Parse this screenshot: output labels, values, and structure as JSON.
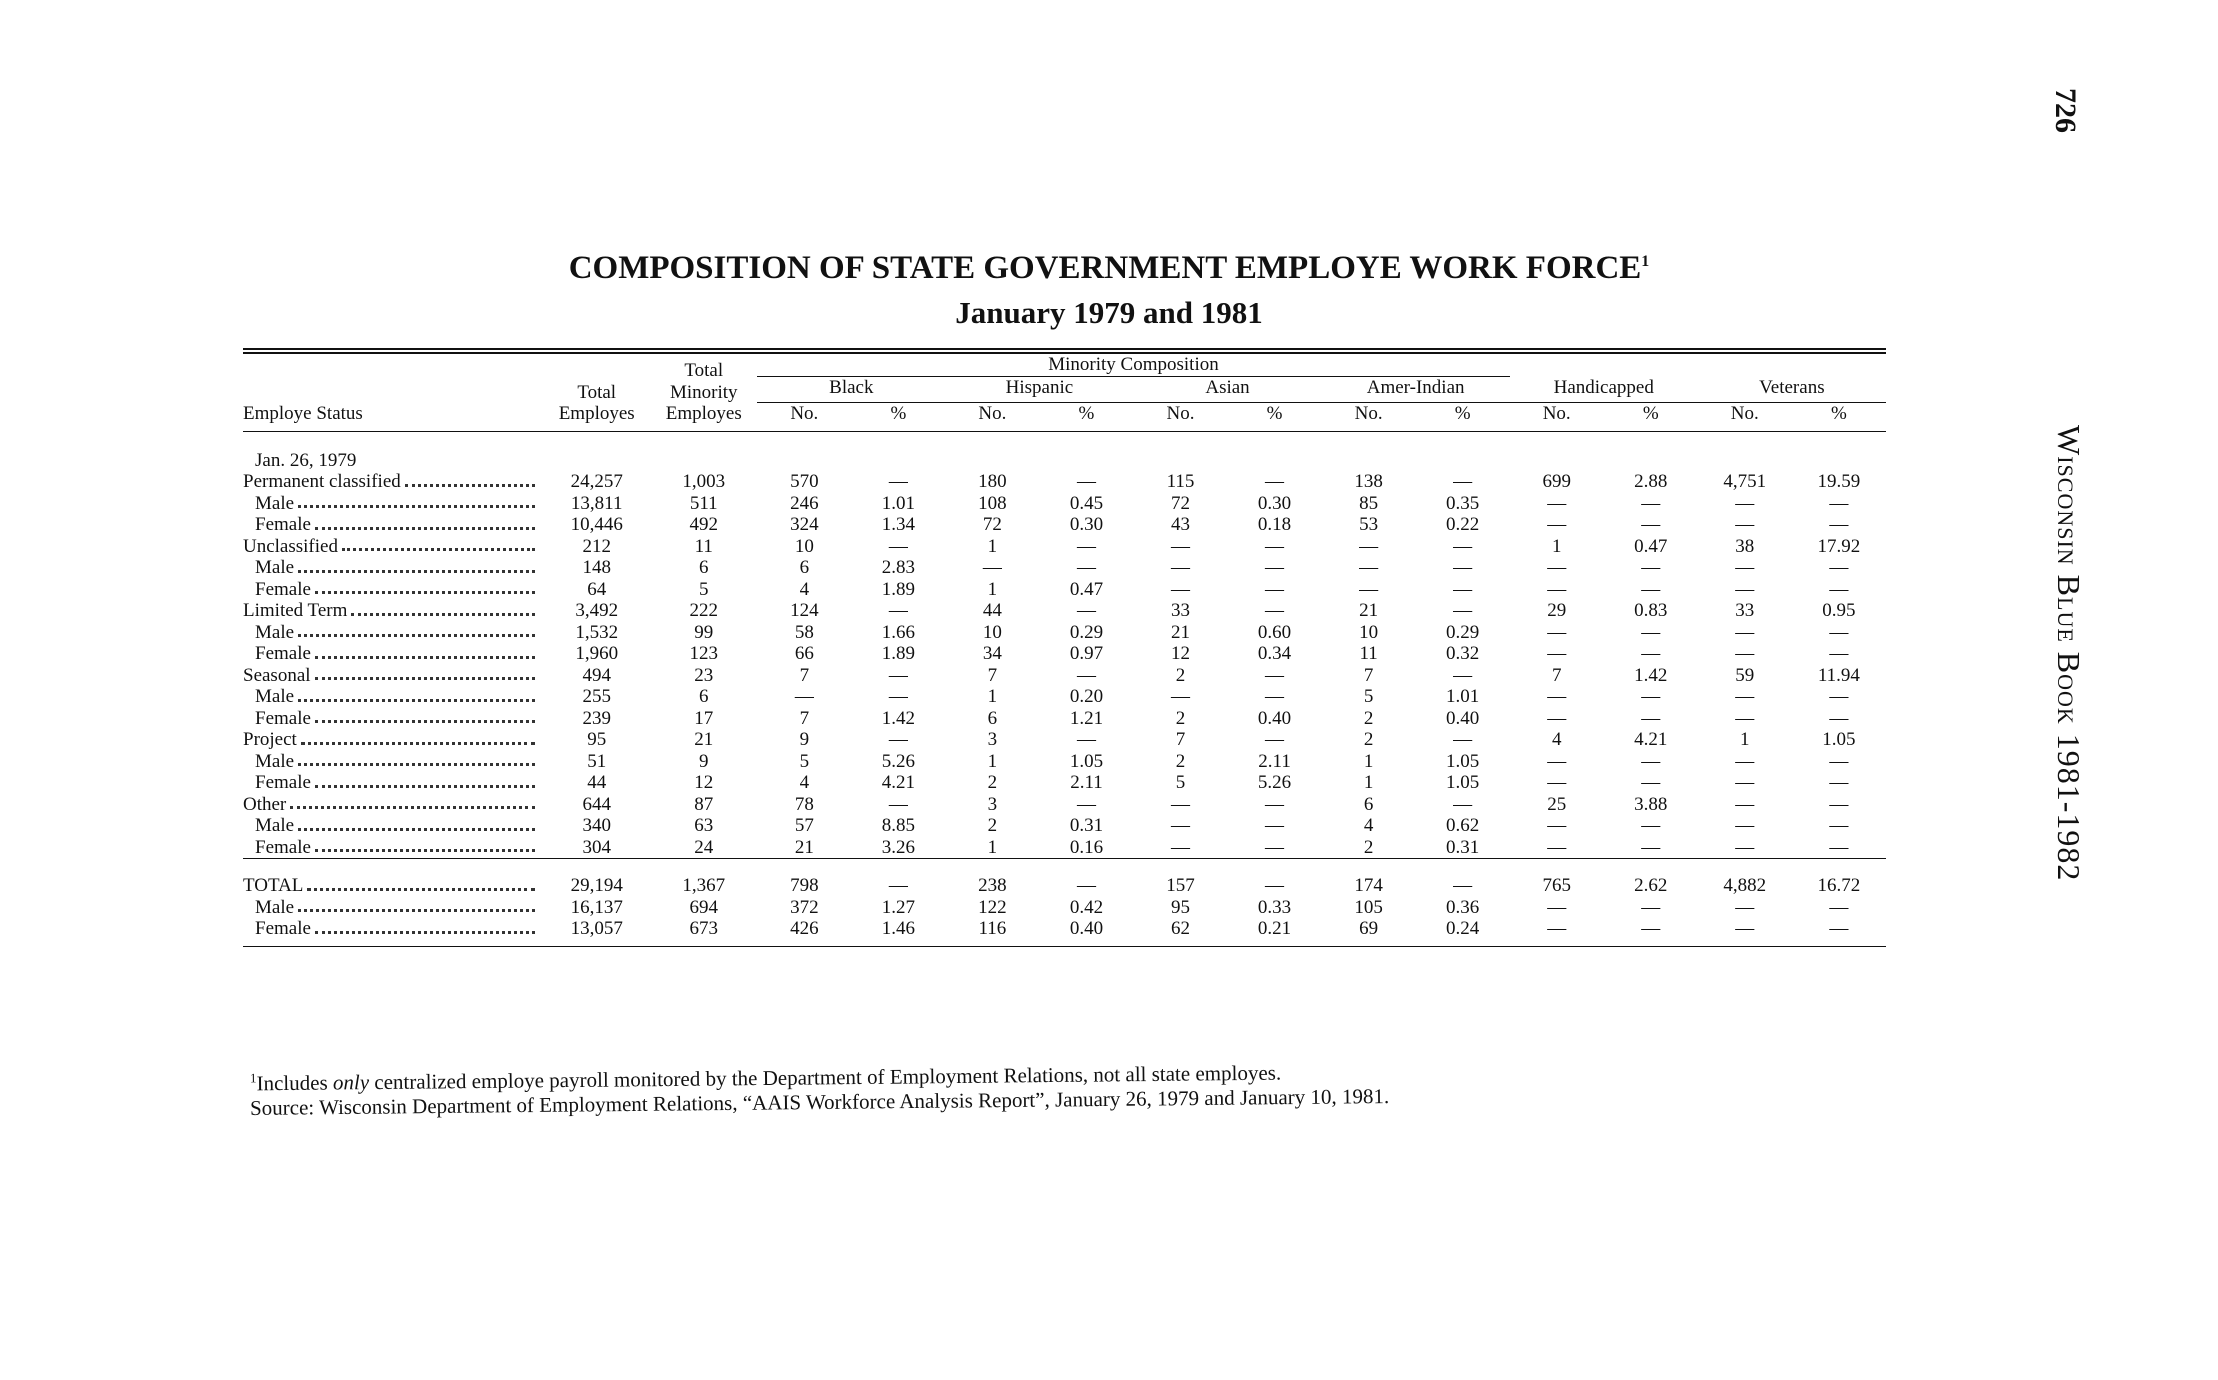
{
  "page_number": "726",
  "running_head": "Wisconsin Blue Book 1981-1982",
  "title": "COMPOSITION OF STATE GOVERNMENT EMPLOYE WORK FORCE",
  "title_note": "1",
  "subtitle": "January 1979 and 1981",
  "table": {
    "status_header": "Employe Status",
    "total_header": "Total Employes",
    "minority_header": "Total Minority Employes",
    "minority_group": "Minority Composition",
    "groups": [
      "Black",
      "Hispanic",
      "Asian",
      "Amer-Indian",
      "Handicapped",
      "Veterans"
    ],
    "subheaders": [
      "No.",
      "%"
    ],
    "section": "Jan. 26, 1979",
    "rows": [
      {
        "label": "Permanent classified",
        "cells": [
          "24,257",
          "1,003",
          "570",
          "—",
          "180",
          "—",
          "115",
          "—",
          "138",
          "—",
          "699",
          "2.88",
          "4,751",
          "19.59"
        ],
        "sub": [
          {
            "label": "Male",
            "cells": [
              "13,811",
              "511",
              "246",
              "1.01",
              "108",
              "0.45",
              "72",
              "0.30",
              "85",
              "0.35",
              "—",
              "—",
              "—",
              "—"
            ]
          },
          {
            "label": "Female",
            "cells": [
              "10,446",
              "492",
              "324",
              "1.34",
              "72",
              "0.30",
              "43",
              "0.18",
              "53",
              "0.22",
              "—",
              "—",
              "—",
              "—"
            ]
          }
        ]
      },
      {
        "label": "Unclassified",
        "cells": [
          "212",
          "11",
          "10",
          "—",
          "1",
          "—",
          "—",
          "—",
          "—",
          "—",
          "1",
          "0.47",
          "38",
          "17.92"
        ],
        "sub": [
          {
            "label": "Male",
            "cells": [
              "148",
              "6",
              "6",
              "2.83",
              "—",
              "—",
              "—",
              "—",
              "—",
              "—",
              "—",
              "—",
              "—",
              "—"
            ]
          },
          {
            "label": "Female",
            "cells": [
              "64",
              "5",
              "4",
              "1.89",
              "1",
              "0.47",
              "—",
              "—",
              "—",
              "—",
              "—",
              "—",
              "—",
              "—"
            ]
          }
        ]
      },
      {
        "label": "Limited Term",
        "cells": [
          "3,492",
          "222",
          "124",
          "—",
          "44",
          "—",
          "33",
          "—",
          "21",
          "—",
          "29",
          "0.83",
          "33",
          "0.95"
        ],
        "sub": [
          {
            "label": "Male",
            "cells": [
              "1,532",
              "99",
              "58",
              "1.66",
              "10",
              "0.29",
              "21",
              "0.60",
              "10",
              "0.29",
              "—",
              "—",
              "—",
              "—"
            ]
          },
          {
            "label": "Female",
            "cells": [
              "1,960",
              "123",
              "66",
              "1.89",
              "34",
              "0.97",
              "12",
              "0.34",
              "11",
              "0.32",
              "—",
              "—",
              "—",
              "—"
            ]
          }
        ]
      },
      {
        "label": "Seasonal",
        "cells": [
          "494",
          "23",
          "7",
          "—",
          "7",
          "—",
          "2",
          "—",
          "7",
          "—",
          "7",
          "1.42",
          "59",
          "11.94"
        ],
        "sub": [
          {
            "label": "Male",
            "cells": [
              "255",
              "6",
              "—",
              "—",
              "1",
              "0.20",
              "—",
              "—",
              "5",
              "1.01",
              "—",
              "—",
              "—",
              "—"
            ]
          },
          {
            "label": "Female",
            "cells": [
              "239",
              "17",
              "7",
              "1.42",
              "6",
              "1.21",
              "2",
              "0.40",
              "2",
              "0.40",
              "—",
              "—",
              "—",
              "—"
            ]
          }
        ]
      },
      {
        "label": "Project",
        "cells": [
          "95",
          "21",
          "9",
          "—",
          "3",
          "—",
          "7",
          "—",
          "2",
          "—",
          "4",
          "4.21",
          "1",
          "1.05"
        ],
        "sub": [
          {
            "label": "Male",
            "cells": [
              "51",
              "9",
              "5",
              "5.26",
              "1",
              "1.05",
              "2",
              "2.11",
              "1",
              "1.05",
              "—",
              "—",
              "—",
              "—"
            ]
          },
          {
            "label": "Female",
            "cells": [
              "44",
              "12",
              "4",
              "4.21",
              "2",
              "2.11",
              "5",
              "5.26",
              "1",
              "1.05",
              "—",
              "—",
              "—",
              "—"
            ]
          }
        ]
      },
      {
        "label": "Other",
        "cells": [
          "644",
          "87",
          "78",
          "—",
          "3",
          "—",
          "—",
          "—",
          "6",
          "—",
          "25",
          "3.88",
          "—",
          "—"
        ],
        "sub": [
          {
            "label": "Male",
            "cells": [
              "340",
              "63",
              "57",
              "8.85",
              "2",
              "0.31",
              "—",
              "—",
              "4",
              "0.62",
              "—",
              "—",
              "—",
              "—"
            ]
          },
          {
            "label": "Female",
            "cells": [
              "304",
              "24",
              "21",
              "3.26",
              "1",
              "0.16",
              "—",
              "—",
              "2",
              "0.31",
              "—",
              "—",
              "—",
              "—"
            ]
          }
        ]
      }
    ],
    "total": {
      "label": "TOTAL",
      "cells": [
        "29,194",
        "1,367",
        "798",
        "—",
        "238",
        "—",
        "157",
        "—",
        "174",
        "—",
        "765",
        "2.62",
        "4,882",
        "16.72"
      ],
      "sub": [
        {
          "label": "Male",
          "cells": [
            "16,137",
            "694",
            "372",
            "1.27",
            "122",
            "0.42",
            "95",
            "0.33",
            "105",
            "0.36",
            "—",
            "—",
            "—",
            "—"
          ]
        },
        {
          "label": "Female",
          "cells": [
            "13,057",
            "673",
            "426",
            "1.46",
            "116",
            "0.40",
            "62",
            "0.21",
            "69",
            "0.24",
            "—",
            "—",
            "—",
            "—"
          ]
        }
      ]
    }
  },
  "footnote": {
    "marker": "1",
    "before": "Includes ",
    "emphasis": "only",
    "after": " centralized employe payroll monitored by the Department of Employment Relations, not all state employes."
  },
  "source": "Source: Wisconsin Department of Employment Relations, “AAIS Workforce Analysis Report”, January 26, 1979 and January 10, 1981."
}
